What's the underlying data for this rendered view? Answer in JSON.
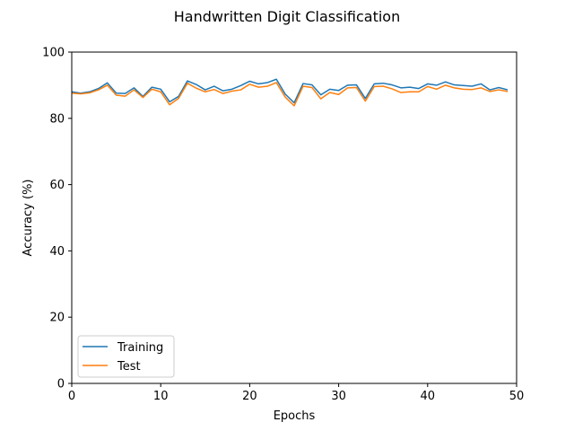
{
  "chart_data": {
    "type": "line",
    "title": "Handwritten Digit Classification",
    "xlabel": "Epochs",
    "ylabel": "Accuracy (%)",
    "xlim": [
      0,
      50
    ],
    "ylim": [
      0,
      100
    ],
    "xticks": [
      "0",
      "10",
      "20",
      "30",
      "40",
      "50"
    ],
    "yticks": [
      "0",
      "20",
      "40",
      "60",
      "80",
      "100"
    ],
    "grid": false,
    "legend_position": "lower-left",
    "x": [
      0,
      1,
      2,
      3,
      4,
      5,
      6,
      7,
      8,
      9,
      10,
      11,
      12,
      13,
      14,
      15,
      16,
      17,
      18,
      19,
      20,
      21,
      22,
      23,
      24,
      25,
      26,
      27,
      28,
      29,
      30,
      31,
      32,
      33,
      34,
      35,
      36,
      37,
      38,
      39,
      40,
      41,
      42,
      43,
      44,
      45,
      46,
      47,
      48,
      49
    ],
    "series": [
      {
        "name": "Training",
        "color": "#1f77b4",
        "values": [
          88.0,
          87.6,
          88.0,
          89.0,
          90.7,
          87.6,
          87.5,
          89.2,
          86.6,
          89.4,
          88.8,
          85.0,
          86.6,
          91.3,
          90.2,
          88.6,
          89.7,
          88.3,
          88.8,
          89.9,
          91.2,
          90.4,
          90.8,
          91.8,
          87.3,
          84.7,
          90.5,
          90.1,
          87.1,
          88.8,
          88.4,
          90.0,
          90.1,
          86.0,
          90.4,
          90.6,
          90.1,
          89.2,
          89.4,
          89.0,
          90.4,
          90.0,
          91.0,
          90.1,
          89.9,
          89.7,
          90.4,
          88.6,
          89.3,
          88.6
        ]
      },
      {
        "name": "Test",
        "color": "#ff7f0e",
        "values": [
          87.6,
          87.4,
          87.7,
          88.6,
          90.0,
          87.0,
          86.7,
          88.6,
          86.3,
          88.8,
          88.0,
          84.1,
          86.0,
          90.6,
          89.1,
          88.0,
          88.7,
          87.5,
          88.2,
          88.6,
          90.3,
          89.4,
          89.7,
          90.8,
          86.4,
          83.8,
          89.7,
          89.3,
          85.9,
          87.8,
          87.2,
          89.2,
          89.3,
          85.2,
          89.6,
          89.7,
          88.9,
          87.8,
          88.0,
          88.0,
          89.6,
          88.8,
          90.0,
          89.2,
          88.8,
          88.7,
          89.2,
          88.1,
          88.6,
          88.1
        ]
      }
    ]
  }
}
